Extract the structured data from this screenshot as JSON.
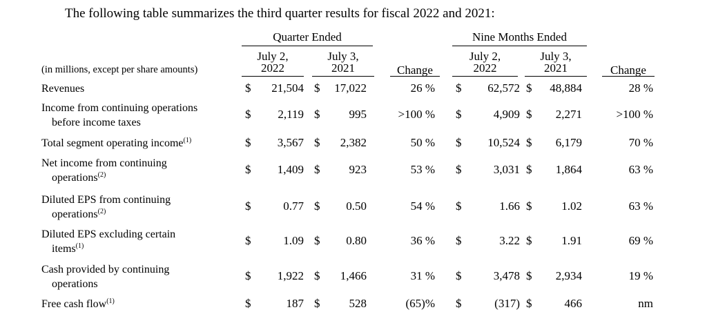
{
  "intro": "The following table summarizes the third quarter results for fiscal 2022 and 2021:",
  "groups": {
    "quarter": "Quarter Ended",
    "nine": "Nine Months Ended"
  },
  "columns": {
    "q_cur": [
      "July 2,",
      "2022"
    ],
    "q_prev": [
      "July 3,",
      "2021"
    ],
    "q_change": "Change",
    "n_cur": [
      "July 2,",
      "2022"
    ],
    "n_prev": [
      "July 3,",
      "2021"
    ],
    "n_change": "Change"
  },
  "units_label": "(in millions, except per share amounts)",
  "currency_symbol": "$",
  "rows": [
    {
      "label": [
        "Revenues"
      ],
      "sup": "",
      "q_cur": "21,504",
      "q_prev": "17,022",
      "q_change": "26 %",
      "n_cur": "62,572",
      "n_prev": "48,884",
      "n_change": "28 %"
    },
    {
      "label": [
        "Income from continuing operations",
        "before income taxes"
      ],
      "sup": "",
      "q_cur": "2,119",
      "q_prev": "995",
      "q_change": ">100 %",
      "n_cur": "4,909",
      "n_prev": "2,271",
      "n_change": ">100 %"
    },
    {
      "label": [
        "Total segment operating income"
      ],
      "sup": "(1)",
      "q_cur": "3,567",
      "q_prev": "2,382",
      "q_change": "50 %",
      "n_cur": "10,524",
      "n_prev": "6,179",
      "n_change": "70 %"
    },
    {
      "label": [
        "Net income from continuing",
        "operations"
      ],
      "sup": "(2)",
      "q_cur": "1,409",
      "q_prev": "923",
      "q_change": "53 %",
      "n_cur": "3,031",
      "n_prev": "1,864",
      "n_change": "63 %"
    },
    {
      "label": [
        "Diluted EPS from continuing",
        "operations"
      ],
      "sup": "(2)",
      "q_cur": "0.77",
      "q_prev": "0.50",
      "q_change": "54 %",
      "n_cur": "1.66",
      "n_prev": "1.02",
      "n_change": "63 %"
    },
    {
      "label": [
        "Diluted EPS excluding certain",
        "items"
      ],
      "sup": "(1)",
      "q_cur": "1.09",
      "q_prev": "0.80",
      "q_change": "36 %",
      "n_cur": "3.22",
      "n_prev": "1.91",
      "n_change": "69 %"
    },
    {
      "label": [
        "Cash provided by continuing",
        "operations"
      ],
      "sup": "",
      "q_cur": "1,922",
      "q_prev": "1,466",
      "q_change": "31 %",
      "n_cur": "3,478",
      "n_prev": "2,934",
      "n_change": "19 %"
    },
    {
      "label": [
        "Free cash flow"
      ],
      "sup": "(1)",
      "q_cur": "187",
      "q_prev": "528",
      "q_change": "(65)%",
      "n_cur": "(317)",
      "n_prev": "466",
      "n_change": "nm"
    }
  ]
}
